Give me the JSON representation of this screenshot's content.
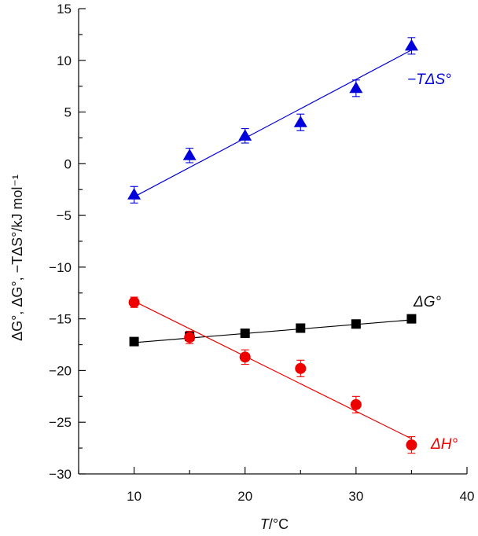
{
  "chart_data": {
    "type": "scatter",
    "title": "",
    "xlabel": "T/°C",
    "ylabel": "ΔG°, ΔG°, −TΔS°/kJ mol⁻¹",
    "xlim": [
      5,
      40
    ],
    "ylim": [
      -30,
      15
    ],
    "xticks": [
      10,
      20,
      30,
      40
    ],
    "xtick_labels": [
      "10",
      "20",
      "30",
      "40"
    ],
    "yticks": [
      15,
      10,
      5,
      0,
      -5,
      -10,
      -15,
      -20,
      -25,
      -30
    ],
    "ytick_labels": [
      "15",
      "10",
      "5",
      "0",
      "−5",
      "−10",
      "−15",
      "−20",
      "−25",
      "−30"
    ],
    "grid": false,
    "series": [
      {
        "name": "−TΔS°",
        "label": "−TΔS°",
        "color": "#0000dd",
        "marker": "triangle",
        "x": [
          10,
          15,
          20,
          25,
          30,
          35
        ],
        "y": [
          -3.0,
          0.8,
          2.7,
          4.0,
          7.3,
          11.4
        ],
        "yerr": [
          0.8,
          0.7,
          0.7,
          0.8,
          0.8,
          0.8
        ],
        "fit": {
          "x": [
            10,
            35
          ],
          "y": [
            -3.2,
            11.0
          ]
        }
      },
      {
        "name": "ΔG°",
        "label": "ΔG°",
        "color": "#000000",
        "marker": "square",
        "x": [
          10,
          15,
          20,
          25,
          30,
          35
        ],
        "y": [
          -17.2,
          -16.7,
          -16.4,
          -15.9,
          -15.5,
          -15.0
        ],
        "yerr": [
          0,
          0,
          0,
          0,
          0,
          0
        ],
        "fit": {
          "x": [
            10,
            35
          ],
          "y": [
            -17.3,
            -15.1
          ]
        }
      },
      {
        "name": "ΔH°",
        "label": "ΔH°",
        "color": "#ee0000",
        "marker": "circle",
        "x": [
          10,
          15,
          20,
          25,
          30,
          35
        ],
        "y": [
          -13.4,
          -16.8,
          -18.7,
          -19.8,
          -23.3,
          -27.2
        ],
        "yerr": [
          0.5,
          0.6,
          0.7,
          0.8,
          0.8,
          0.8
        ],
        "fit": {
          "x": [
            10,
            35
          ],
          "y": [
            -13.3,
            -26.6
          ]
        }
      }
    ]
  }
}
